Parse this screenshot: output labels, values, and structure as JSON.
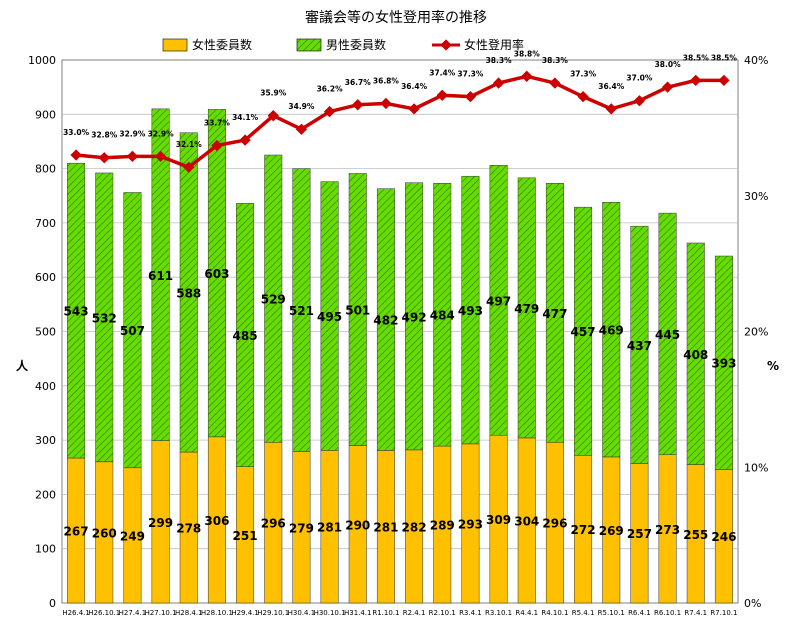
{
  "chart_data": {
    "type": "bar",
    "title": "審議会等の女性登用率の推移",
    "categories": [
      "H26.4.1",
      "H26.10.1",
      "H27.4.1",
      "H27.10.1",
      "H28.4.1",
      "H28.10.1",
      "H29.4.1",
      "H29.10.1",
      "H30.4.1",
      "H30.10.1",
      "H31.4.1",
      "R1.10.1",
      "R2.4.1",
      "R2.10.1",
      "R3.4.1",
      "R3.10.1",
      "R4.4.1",
      "R4.10.1",
      "R5.4.1",
      "R5.10.1",
      "R6.4.1",
      "R6.10.1",
      "R7.4.1",
      "R7.10.1"
    ],
    "series": [
      {
        "name": "女性委員数",
        "kind": "bar-stacked",
        "color": "#ffc000",
        "values": [
          267,
          260,
          249,
          299,
          278,
          306,
          251,
          296,
          279,
          281,
          290,
          281,
          282,
          289,
          293,
          309,
          304,
          296,
          272,
          269,
          257,
          273,
          255,
          246
        ]
      },
      {
        "name": "男性委員数",
        "kind": "bar-stacked",
        "color": "#66dd00",
        "values": [
          543,
          532,
          507,
          611,
          588,
          603,
          485,
          529,
          521,
          495,
          501,
          482,
          492,
          484,
          493,
          497,
          479,
          477,
          457,
          469,
          437,
          445,
          408,
          393
        ]
      },
      {
        "name": "女性登用率",
        "kind": "line",
        "axis": "right",
        "color": "#cc0000",
        "values": [
          33.0,
          32.8,
          32.9,
          32.9,
          32.1,
          33.7,
          34.1,
          35.9,
          34.9,
          36.2,
          36.7,
          36.8,
          36.4,
          37.4,
          37.3,
          38.3,
          38.8,
          38.3,
          37.3,
          36.4,
          37.0,
          38.0,
          38.5,
          38.5
        ]
      }
    ],
    "rate_labels": [
      "33.0%",
      "32.8%",
      "32.9%",
      "32.9%",
      "32.1%",
      "33.7%",
      "34.1%",
      "35.9%",
      "34.9%",
      "36.2%",
      "36.7%",
      "36.8%",
      "36.4%",
      "37.4%",
      "37.3%",
      "38.3%",
      "38.8%",
      "38.3%",
      "37.3%",
      "36.4%",
      "37.0%",
      "38.0%",
      "38.5%",
      "38.5%"
    ],
    "ylabel": "人",
    "y2label": "%",
    "ylim": [
      0,
      1000
    ],
    "y2lim": [
      0,
      40
    ],
    "yticks": [
      0,
      100,
      200,
      300,
      400,
      500,
      600,
      700,
      800,
      900,
      1000
    ],
    "y2ticks": [
      "0%",
      "10%",
      "20%",
      "30%",
      "40%"
    ],
    "legend": [
      "女性委員数",
      "男性委員数",
      "女性登用率"
    ],
    "grid": true
  }
}
